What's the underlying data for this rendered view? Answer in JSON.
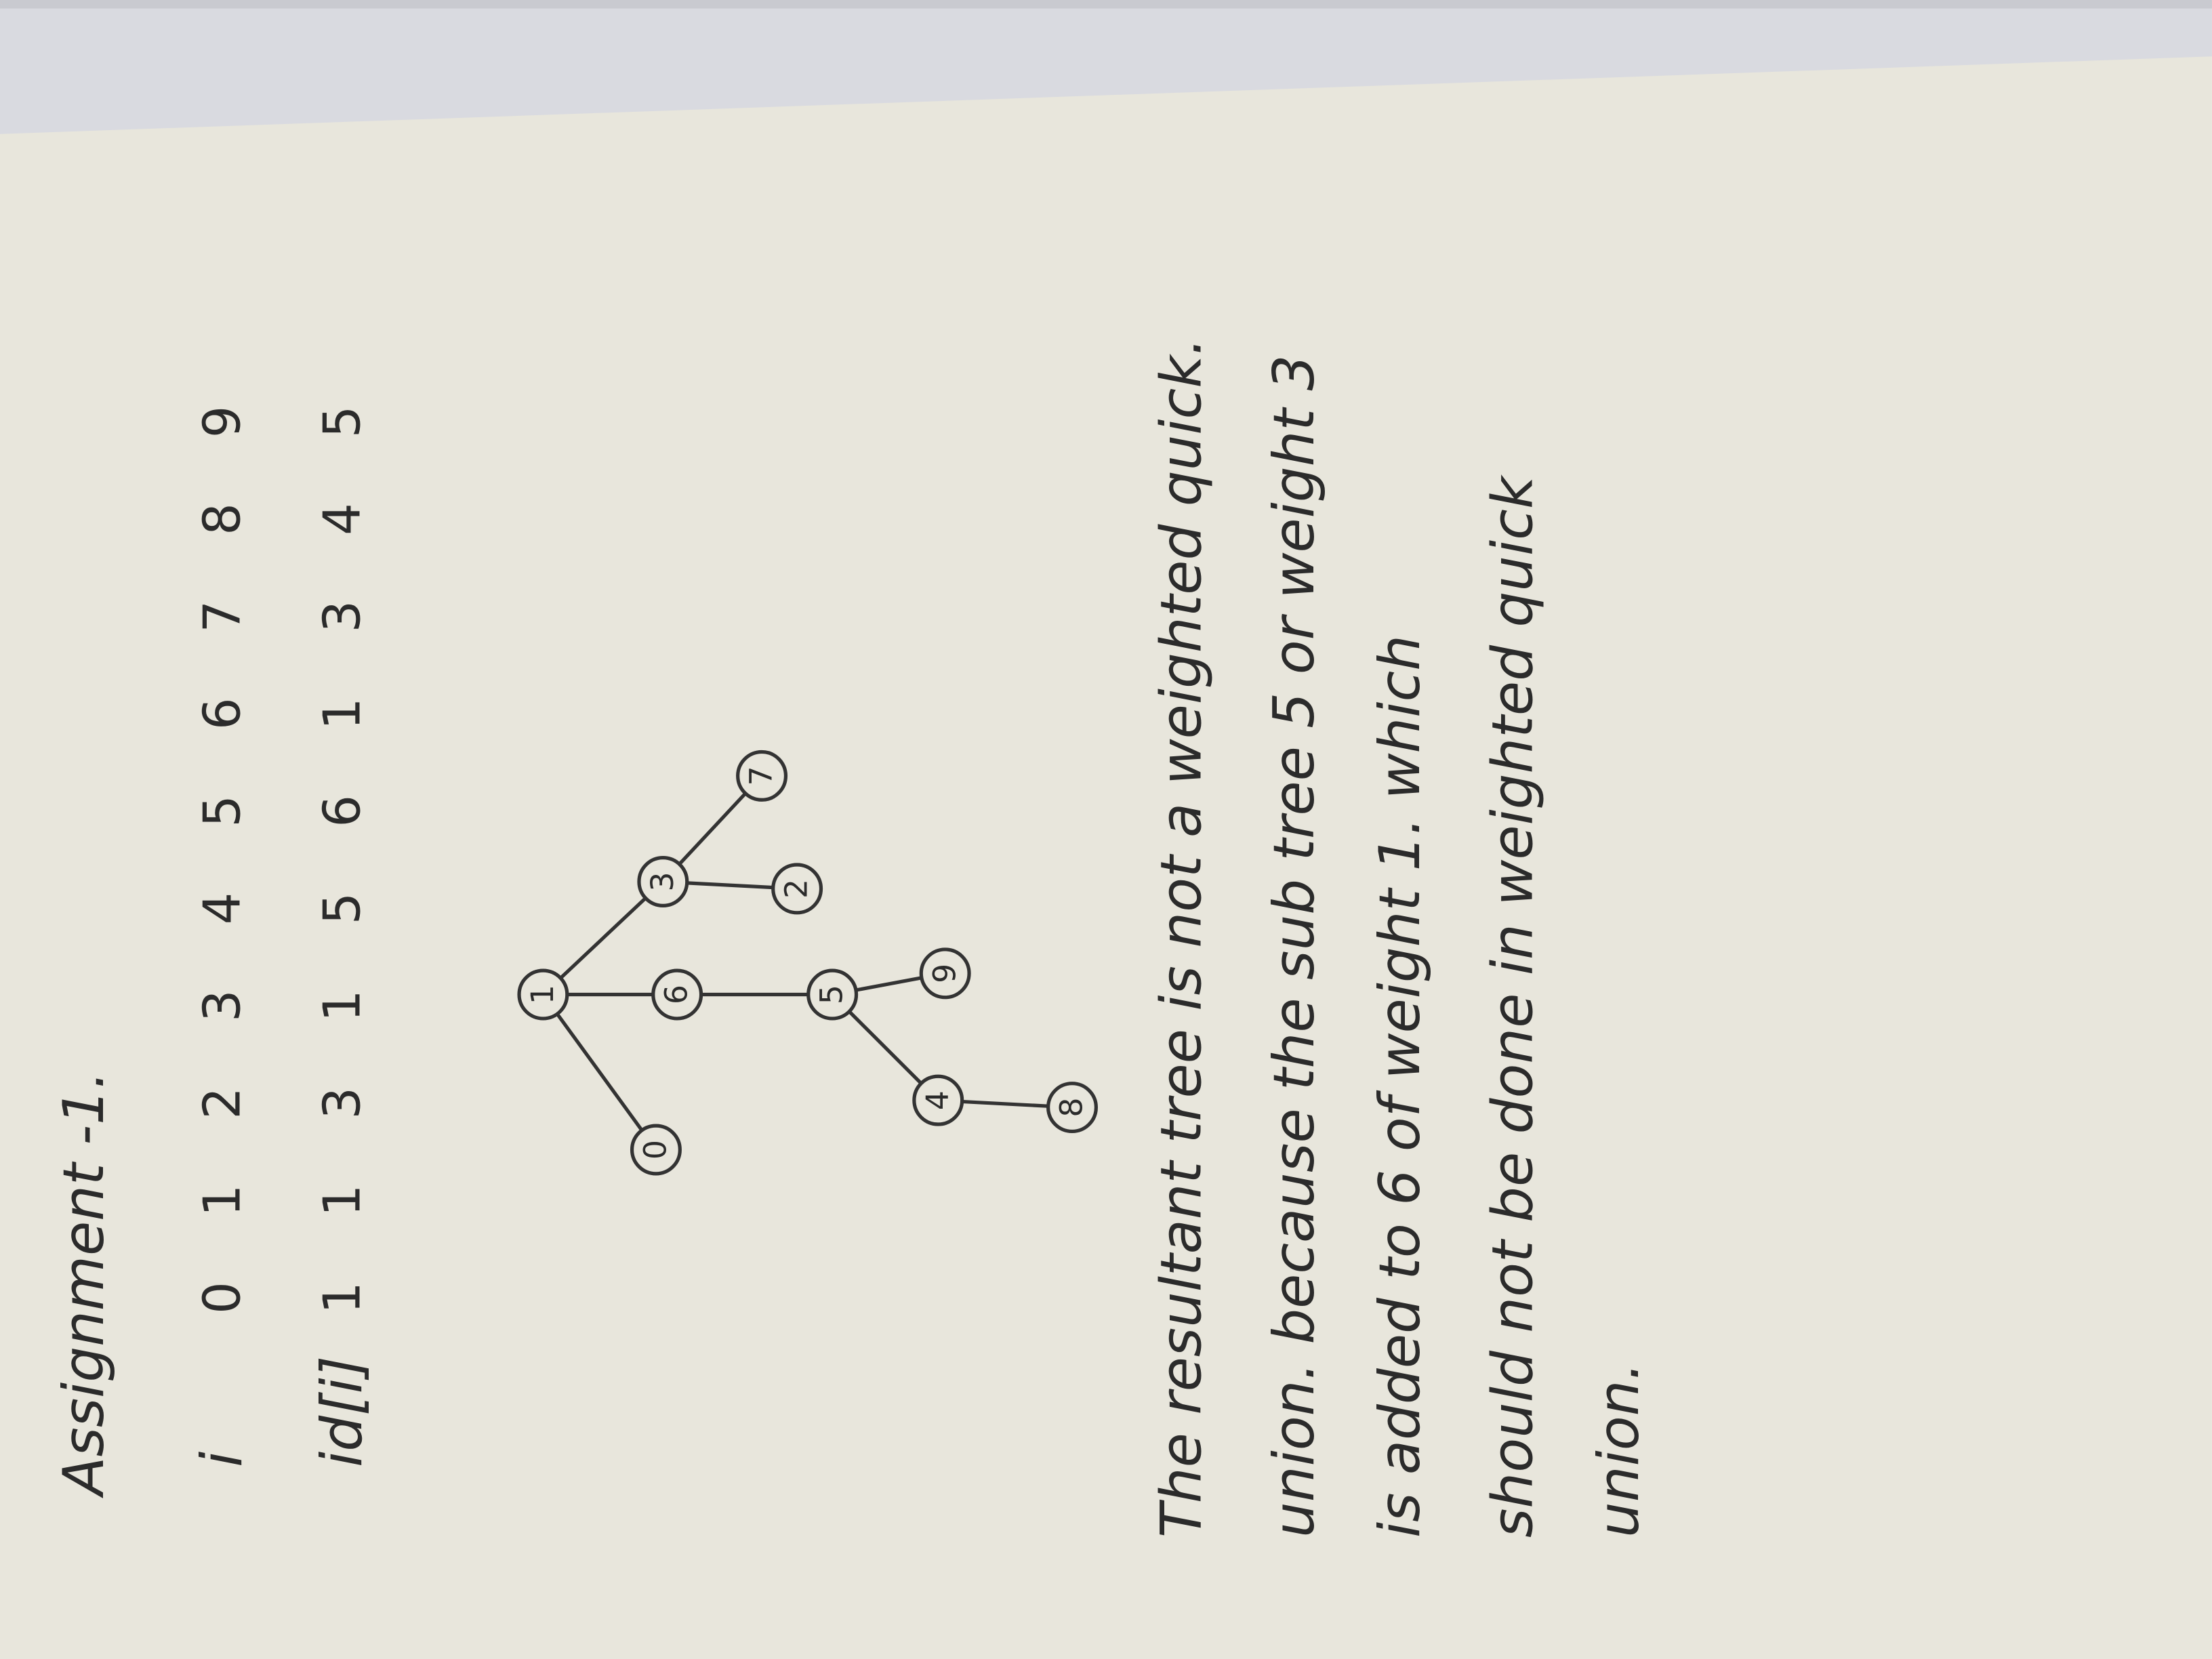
{
  "header": {
    "title": "Assignment -1."
  },
  "table": {
    "row_labels": [
      "i",
      "id[i]"
    ],
    "rows": [
      [
        0,
        1,
        2,
        3,
        4,
        5,
        6,
        7,
        8,
        9
      ],
      [
        1,
        1,
        3,
        1,
        5,
        6,
        1,
        3,
        4,
        5
      ]
    ]
  },
  "tree": {
    "nodes": [
      "1",
      "0",
      "6",
      "5",
      "9",
      "4",
      "8",
      "3",
      "2",
      "7"
    ]
  },
  "paragraph": {
    "lines": [
      "The resultant tree is not a weighted quick.",
      "union. because the sub tree 5 or weight 3",
      "is added to 6 of weight 1. which",
      "should not be done in weighted quick",
      "union."
    ]
  }
}
